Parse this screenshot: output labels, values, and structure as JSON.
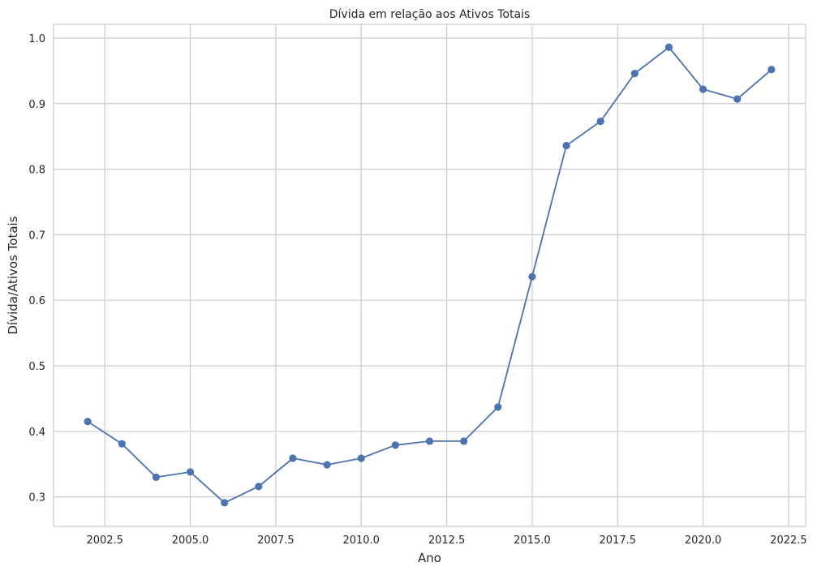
{
  "chart_data": {
    "type": "line",
    "title": "Dívida em relação aos Ativos Totais",
    "xlabel": "Ano",
    "ylabel": "Dívida/Ativos Totais",
    "xlim": [
      2001.0,
      2023.0
    ],
    "ylim": [
      0.255,
      1.021
    ],
    "x_ticks": [
      2002.5,
      2005.0,
      2007.5,
      2010.0,
      2012.5,
      2015.0,
      2017.5,
      2020.0,
      2022.5
    ],
    "x_tick_labels": [
      "2002.5",
      "2005.0",
      "2007.5",
      "2010.0",
      "2012.5",
      "2015.0",
      "2017.5",
      "2020.0",
      "2022.5"
    ],
    "y_ticks": [
      0.3,
      0.4,
      0.5,
      0.6,
      0.7,
      0.8,
      0.9,
      1.0
    ],
    "y_tick_labels": [
      "0.3",
      "0.4",
      "0.5",
      "0.6",
      "0.7",
      "0.8",
      "0.9",
      "1.0"
    ],
    "grid": true,
    "color": "#4c72b0",
    "series": [
      {
        "x": [
          2002,
          2003,
          2004,
          2005,
          2006,
          2007,
          2008,
          2009,
          2010,
          2011,
          2012,
          2013,
          2014,
          2015,
          2016,
          2017,
          2018,
          2019,
          2020,
          2021,
          2022
        ],
        "values": [
          0.415,
          0.381,
          0.33,
          0.338,
          0.291,
          0.316,
          0.359,
          0.349,
          0.359,
          0.379,
          0.385,
          0.385,
          0.437,
          0.636,
          0.836,
          0.873,
          0.946,
          0.986,
          0.922,
          0.907,
          0.952
        ]
      }
    ]
  }
}
